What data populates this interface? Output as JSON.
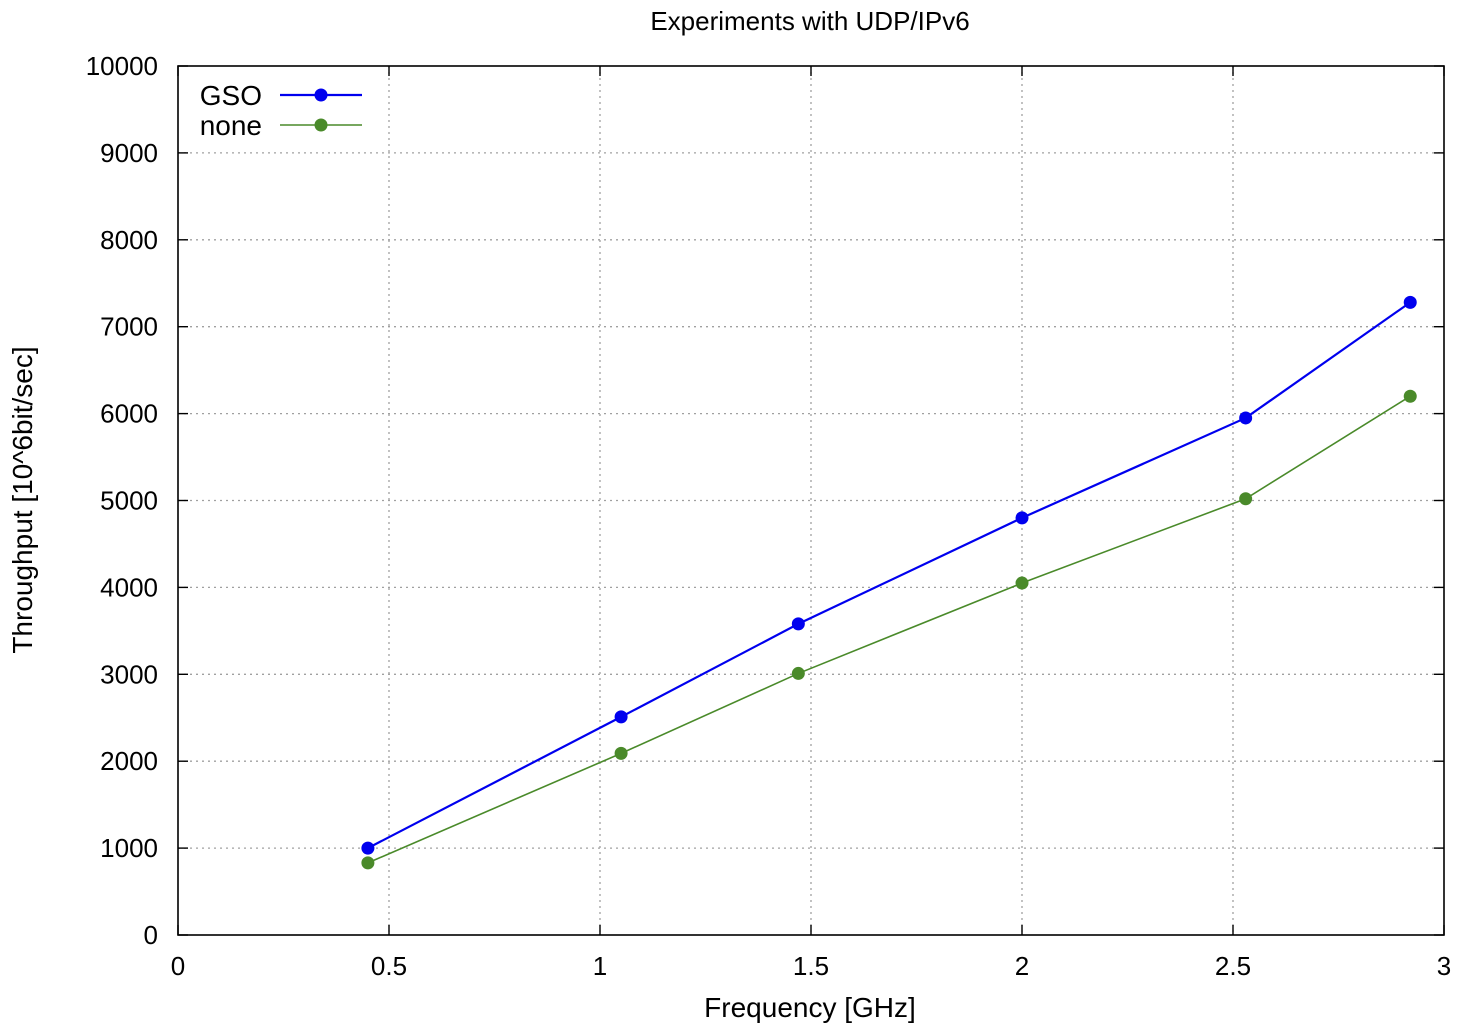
{
  "chart_data": {
    "type": "line",
    "title": "Experiments with UDP/IPv6",
    "xlabel": "Frequency [GHz]",
    "ylabel": "Throughput [10^6bit/sec]",
    "xlim": [
      0,
      3
    ],
    "ylim": [
      0,
      10000
    ],
    "xticks": [
      0,
      0.5,
      1,
      1.5,
      2,
      2.5,
      3
    ],
    "xtick_labels": [
      "0",
      "0.5",
      "1",
      "1.5",
      "2",
      "2.5",
      "3"
    ],
    "yticks": [
      0,
      1000,
      2000,
      3000,
      4000,
      5000,
      6000,
      7000,
      8000,
      9000,
      10000
    ],
    "ytick_labels": [
      "0",
      "1000",
      "2000",
      "3000",
      "4000",
      "5000",
      "6000",
      "7000",
      "8000",
      "9000",
      "10000"
    ],
    "grid": true,
    "legend_position": "top-left",
    "series": [
      {
        "name": "GSO",
        "color": "#0000ee",
        "x": [
          0.45,
          1.05,
          1.47,
          2.0,
          2.53,
          2.92
        ],
        "y": [
          1000,
          2510,
          3580,
          4800,
          5950,
          7280
        ]
      },
      {
        "name": "none",
        "color": "#4a8a2a",
        "x": [
          0.45,
          1.05,
          1.47,
          2.0,
          2.53,
          2.92
        ],
        "y": [
          830,
          2090,
          3010,
          4050,
          5020,
          6200
        ]
      }
    ]
  }
}
